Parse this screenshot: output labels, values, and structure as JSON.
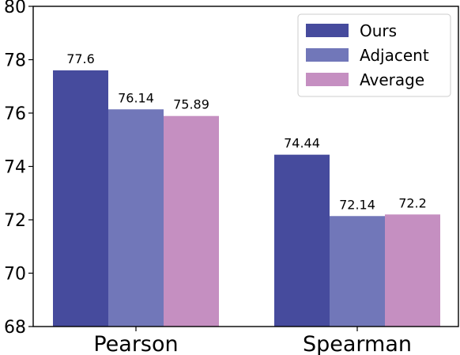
{
  "chart_data": {
    "type": "bar",
    "categories": [
      "Pearson",
      "Spearman"
    ],
    "series": [
      {
        "name": "Ours",
        "values": [
          77.6,
          74.44
        ],
        "labels": [
          "77.6",
          "74.44"
        ],
        "color": "#464b9d"
      },
      {
        "name": "Adjacent",
        "values": [
          76.14,
          72.14
        ],
        "labels": [
          "76.14",
          "72.14"
        ],
        "color": "#7177b9"
      },
      {
        "name": "Average",
        "values": [
          75.89,
          72.2
        ],
        "labels": [
          "75.89",
          "72.2"
        ],
        "color": "#c58fc1"
      }
    ],
    "title": "",
    "xlabel": "",
    "ylabel": "",
    "ylim": [
      68,
      80
    ],
    "yticks": [
      68,
      70,
      72,
      74,
      76,
      78,
      80
    ],
    "ytick_labels": [
      "68",
      "70",
      "72",
      "74",
      "76",
      "78",
      "80"
    ],
    "grid": false,
    "legend_position": "top-right"
  }
}
